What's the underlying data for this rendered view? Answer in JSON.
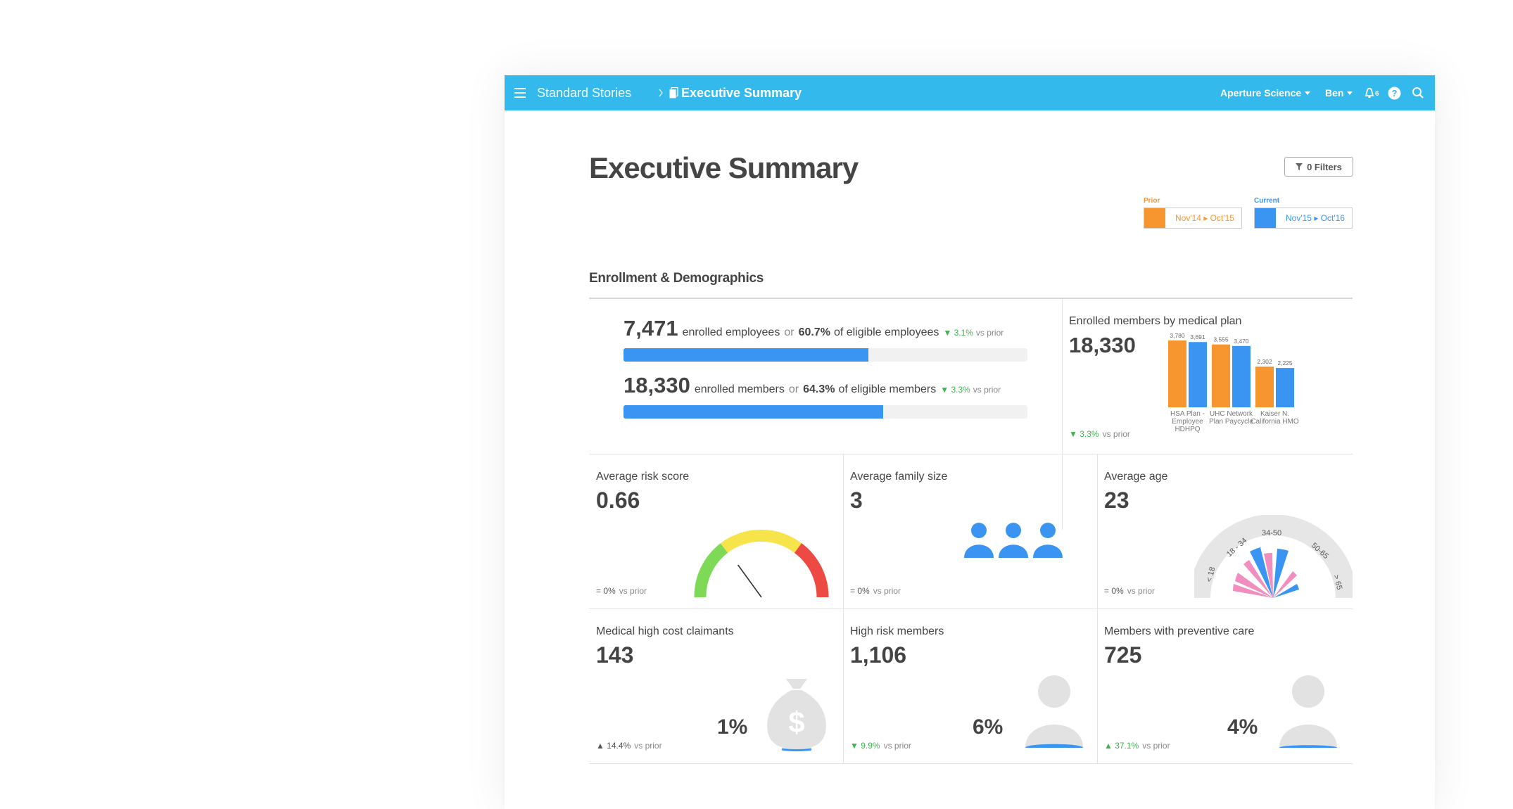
{
  "header": {
    "breadcrumb_parent": "Standard Stories",
    "breadcrumb_current": "Executive Summary",
    "org": "Aperture Science",
    "user": "Ben",
    "notification_count": "6",
    "icons": [
      "menu-icon",
      "chevron-right-icon",
      "document-icon",
      "notification-icon",
      "help-icon",
      "search-icon"
    ]
  },
  "page": {
    "title": "Executive Summary",
    "filters_label": "0 Filters",
    "prior_label": "Prior",
    "prior_range": "Nov'14 ▸ Oct'15",
    "current_label": "Current",
    "current_range": "Nov'15 ▸ Oct'16",
    "colors": {
      "prior": "#f7962e",
      "current": "#3a95f2",
      "header": "#33b9ec",
      "up_good": "#3fb34f"
    }
  },
  "section": {
    "title": "Enrollment & Demographics"
  },
  "enrollment": {
    "employees": {
      "count": "7,471",
      "text": "enrolled employees",
      "or": "or",
      "pct": "60.7%",
      "pct_text": "of eligible employees",
      "change": "▼ 3.1%",
      "vs": "vs prior",
      "fill": 0.607
    },
    "members": {
      "count": "18,330",
      "text": "enrolled members",
      "or": "or",
      "pct": "64.3%",
      "pct_text": "of eligible members",
      "change": "▼ 3.3%",
      "vs": "vs prior",
      "fill": 0.643
    }
  },
  "plan_chart": {
    "label": "Enrolled members by medical plan",
    "total": "18,330",
    "change": "▼ 3.3%",
    "vs": "vs prior"
  },
  "chart_data": {
    "type": "bar",
    "categories": [
      "HSA Plan - Employee HDHPQ",
      "UHC Network Plan Paycycle",
      "Kaiser N. California HMO"
    ],
    "category_lines": [
      [
        "HSA Plan -",
        "Employee",
        "HDHPQ"
      ],
      [
        "UHC Network",
        "Plan Paycycle"
      ],
      [
        "Kaiser N.",
        "California HMO"
      ]
    ],
    "series": [
      {
        "values": [
          3780,
          3555,
          2302
        ],
        "labels": [
          "3,780",
          "3,555",
          "2,302"
        ],
        "color": "#f7962e"
      },
      {
        "values": [
          3691,
          3470,
          2225
        ],
        "labels": [
          "3,691",
          "3,470",
          "2,225"
        ],
        "color": "#3a95f2"
      }
    ],
    "ylim": [
      0,
      3780
    ]
  },
  "cards": {
    "risk": {
      "label": "Average risk score",
      "value": "0.66",
      "change": "= 0%",
      "vs": "vs prior",
      "gauge_level": 0.66
    },
    "family": {
      "label": "Average family size",
      "value": "3",
      "change": "= 0%",
      "vs": "vs prior",
      "icon": "people-icon"
    },
    "age": {
      "label": "Average age",
      "value": "23",
      "change": "= 0%",
      "vs": "vs prior",
      "age_groups": [
        "< 18",
        "18 - 34",
        "34-50",
        "50-65",
        "> 65"
      ]
    },
    "claimants": {
      "label": "Medical high cost claimants",
      "value": "143",
      "change": "▲ 14.4%",
      "vs": "vs prior",
      "pct": "1%",
      "icon": "money-bag-icon",
      "level": 0.01
    },
    "highrisk": {
      "label": "High risk members",
      "value": "1,106",
      "change": "▼ 9.9%",
      "vs": "vs prior",
      "pct": "6%",
      "icon": "person-icon",
      "level": 0.06
    },
    "preventive": {
      "label": "Members with preventive care",
      "value": "725",
      "change": "▲ 37.1%",
      "vs": "vs prior",
      "pct": "4%",
      "icon": "person-icon",
      "level": 0.04
    }
  }
}
